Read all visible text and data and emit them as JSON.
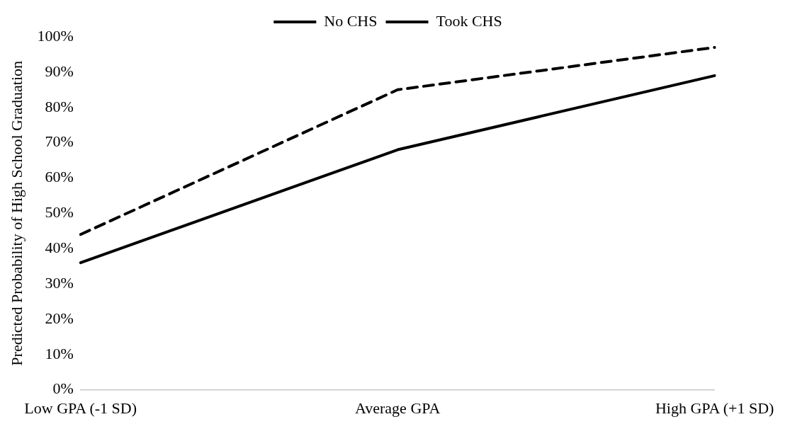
{
  "chart_data": {
    "type": "line",
    "ylabel": "Predicted Probability of High School Graduation",
    "categories": [
      "Low GPA (-1 SD)",
      "Average GPA",
      "High GPA (+1 SD)"
    ],
    "series": [
      {
        "name": "No CHS",
        "color": "#000000",
        "line_style": "solid",
        "values": [
          36,
          68,
          89
        ]
      },
      {
        "name": "Took CHS",
        "color": "#000000",
        "line_style": "dashed",
        "values": [
          44,
          85,
          97
        ]
      }
    ],
    "ylim": [
      0,
      100
    ],
    "yticks": [
      {
        "value": 0,
        "label": "0%"
      },
      {
        "value": 10,
        "label": "10%"
      },
      {
        "value": 20,
        "label": "20%"
      },
      {
        "value": 30,
        "label": "30%"
      },
      {
        "value": 40,
        "label": "40%"
      },
      {
        "value": 50,
        "label": "50%"
      },
      {
        "value": 60,
        "label": "60%"
      },
      {
        "value": 70,
        "label": "70%"
      },
      {
        "value": 80,
        "label": "80%"
      },
      {
        "value": 90,
        "label": "90%"
      },
      {
        "value": 100,
        "label": "100%"
      }
    ],
    "grid": false,
    "legend": "top",
    "marker": "none"
  }
}
